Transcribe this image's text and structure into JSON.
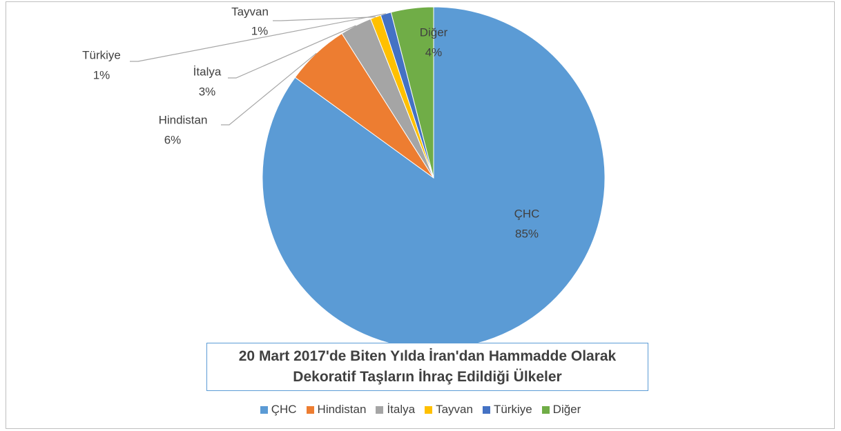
{
  "chart_data": {
    "type": "pie",
    "title": "20 Mart 2017'de Biten Yılda İran'dan Hammadde Olarak Dekoratif Taşların İhraç Edildiği Ülkeler",
    "categories": [
      "ÇHC",
      "Hindistan",
      "İtalya",
      "Tayvan",
      "Türkiye",
      "Diğer"
    ],
    "values": [
      85,
      6,
      3,
      1,
      1,
      4
    ],
    "value_labels": [
      "85%",
      "6%",
      "3%",
      "1%",
      "1%",
      "4%"
    ],
    "colors": [
      "#5b9bd5",
      "#ed7d31",
      "#a5a5a5",
      "#ffc000",
      "#4472c4",
      "#70ad47"
    ],
    "legend": "bottom"
  }
}
